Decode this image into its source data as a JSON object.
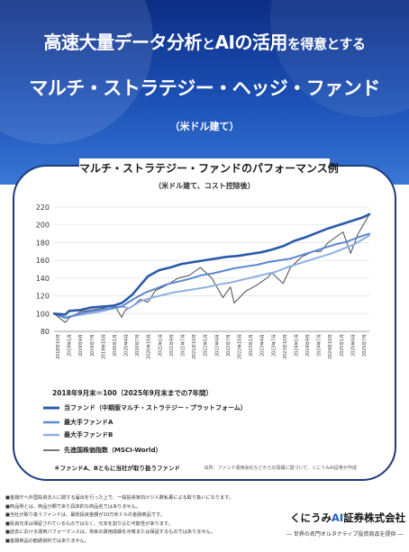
{
  "header": {
    "title_line1_part1": "高速大量データ分析",
    "title_line1_part2": "と",
    "title_line1_part3": "AIの活用",
    "title_line1_part4": "を得意とする",
    "title_line2": "マルチ・ストラテジー・ヘッジ・ファンド",
    "subtitle": "（米ドル建て）"
  },
  "card": {
    "title": "マルチ・ストラテジー・ファンドのパフォーマンス例",
    "subtitle": "（米ドル建て、コスト控除後）",
    "basis_note": "2018年9月末＝100（2025年9月末までの7年間）",
    "footnote": "＊ファンドA、Bともに当社が取り扱うファンド",
    "source": "出所：ファンド運用会社などからの情報に基づいて、くにうみAI証券が作成"
  },
  "colors": {
    "own_fund": "#2a5aa8",
    "fund_a": "#5b88cf",
    "fund_b": "#8db0e4",
    "msci": "#4a4a4a",
    "grid": "#e3e3e3",
    "axis_text": "#333333"
  },
  "chart_data": {
    "type": "line",
    "title": "",
    "xlabel": "",
    "ylabel": "",
    "ylim": [
      80,
      220
    ],
    "yticks": [
      80,
      100,
      120,
      140,
      160,
      180,
      200,
      220
    ],
    "grid": "horizontal",
    "x_tick_labels": [
      "2018年10月",
      "2019年1月",
      "2019年4月",
      "2019年7月",
      "2019年10月",
      "2020年1月",
      "2020年4月",
      "2020年7月",
      "2020年10月",
      "2021年1月",
      "2021年4月",
      "2021年7月",
      "2021年10月",
      "2022年1月",
      "2022年4月",
      "2022年7月",
      "2022年10月",
      "2023年1月",
      "2023年4月",
      "2023年7月",
      "2023年10月",
      "2024年1月",
      "2024年4月",
      "2024年7月",
      "2024年10月",
      "2025年1月",
      "2025年4月",
      "2025年7月"
    ],
    "x_range": [
      "2018-09",
      "2025-09"
    ],
    "series": [
      {
        "name": "当ファンド（中期版マルチ・ストラテジー・プラットフォーム）",
        "points": [
          [
            "2018-09",
            100
          ],
          [
            "2018-12",
            99
          ],
          [
            "2019-01",
            103
          ],
          [
            "2019-04",
            104
          ],
          [
            "2019-07",
            107
          ],
          [
            "2019-10",
            108
          ],
          [
            "2020-01",
            109
          ],
          [
            "2020-03",
            112
          ],
          [
            "2020-04",
            115
          ],
          [
            "2020-06",
            122
          ],
          [
            "2020-08",
            132
          ],
          [
            "2020-10",
            142
          ],
          [
            "2021-01",
            149
          ],
          [
            "2021-04",
            152
          ],
          [
            "2021-07",
            156
          ],
          [
            "2021-10",
            158
          ],
          [
            "2022-01",
            160
          ],
          [
            "2022-04",
            162
          ],
          [
            "2022-07",
            164
          ],
          [
            "2022-10",
            165
          ],
          [
            "2023-01",
            167
          ],
          [
            "2023-04",
            169
          ],
          [
            "2023-07",
            172
          ],
          [
            "2023-10",
            176
          ],
          [
            "2024-01",
            182
          ],
          [
            "2024-04",
            186
          ],
          [
            "2024-07",
            191
          ],
          [
            "2024-10",
            196
          ],
          [
            "2025-01",
            200
          ],
          [
            "2025-04",
            204
          ],
          [
            "2025-07",
            208
          ],
          [
            "2025-09",
            212
          ]
        ]
      },
      {
        "name": "最大手ファンドA",
        "points": [
          [
            "2018-09",
            100
          ],
          [
            "2018-12",
            95
          ],
          [
            "2019-03",
            99
          ],
          [
            "2019-06",
            102
          ],
          [
            "2019-09",
            104
          ],
          [
            "2019-12",
            106
          ],
          [
            "2020-03",
            108
          ],
          [
            "2020-06",
            116
          ],
          [
            "2020-09",
            123
          ],
          [
            "2020-12",
            128
          ],
          [
            "2021-03",
            133
          ],
          [
            "2021-06",
            136
          ],
          [
            "2021-09",
            139
          ],
          [
            "2021-12",
            143
          ],
          [
            "2022-03",
            145
          ],
          [
            "2022-06",
            148
          ],
          [
            "2022-09",
            151
          ],
          [
            "2022-12",
            153
          ],
          [
            "2023-03",
            155
          ],
          [
            "2023-06",
            158
          ],
          [
            "2023-09",
            160
          ],
          [
            "2023-12",
            162
          ],
          [
            "2024-03",
            166
          ],
          [
            "2024-06",
            170
          ],
          [
            "2024-09",
            174
          ],
          [
            "2024-12",
            178
          ],
          [
            "2025-03",
            181
          ],
          [
            "2025-06",
            186
          ],
          [
            "2025-09",
            190
          ]
        ]
      },
      {
        "name": "最大手ファンドB",
        "points": [
          [
            "2018-09",
            100
          ],
          [
            "2018-12",
            96
          ],
          [
            "2019-03",
            98
          ],
          [
            "2019-06",
            100
          ],
          [
            "2019-09",
            102
          ],
          [
            "2019-12",
            105
          ],
          [
            "2020-03",
            108
          ],
          [
            "2020-05",
            106
          ],
          [
            "2020-08",
            114
          ],
          [
            "2020-11",
            118
          ],
          [
            "2021-02",
            121
          ],
          [
            "2021-05",
            124
          ],
          [
            "2021-08",
            126
          ],
          [
            "2021-11",
            128
          ],
          [
            "2022-02",
            130
          ],
          [
            "2022-05",
            133
          ],
          [
            "2022-08",
            135
          ],
          [
            "2022-11",
            138
          ],
          [
            "2023-02",
            141
          ],
          [
            "2023-05",
            144
          ],
          [
            "2023-08",
            147
          ],
          [
            "2023-11",
            152
          ],
          [
            "2024-02",
            156
          ],
          [
            "2024-05",
            160
          ],
          [
            "2024-08",
            164
          ],
          [
            "2024-11",
            168
          ],
          [
            "2025-02",
            173
          ],
          [
            "2025-05",
            178
          ],
          [
            "2025-09",
            188
          ]
        ]
      },
      {
        "name": "先進国株価指数（MSCI-World）",
        "points": [
          [
            "2018-09",
            100
          ],
          [
            "2018-12",
            90
          ],
          [
            "2019-01",
            95
          ],
          [
            "2019-04",
            102
          ],
          [
            "2019-07",
            104
          ],
          [
            "2019-10",
            106
          ],
          [
            "2020-01",
            110
          ],
          [
            "2020-03",
            96
          ],
          [
            "2020-04",
            104
          ],
          [
            "2020-06",
            109
          ],
          [
            "2020-08",
            116
          ],
          [
            "2020-10",
            113
          ],
          [
            "2020-12",
            126
          ],
          [
            "2021-03",
            132
          ],
          [
            "2021-06",
            140
          ],
          [
            "2021-09",
            143
          ],
          [
            "2021-12",
            152
          ],
          [
            "2022-03",
            140
          ],
          [
            "2022-06",
            118
          ],
          [
            "2022-08",
            130
          ],
          [
            "2022-09",
            112
          ],
          [
            "2022-12",
            125
          ],
          [
            "2023-03",
            132
          ],
          [
            "2023-06",
            141
          ],
          [
            "2023-07",
            146
          ],
          [
            "2023-10",
            134
          ],
          [
            "2023-12",
            152
          ],
          [
            "2024-03",
            164
          ],
          [
            "2024-06",
            170
          ],
          [
            "2024-08",
            170
          ],
          [
            "2024-10",
            180
          ],
          [
            "2024-12",
            186
          ],
          [
            "2025-02",
            192
          ],
          [
            "2025-04",
            168
          ],
          [
            "2025-06",
            190
          ],
          [
            "2025-09",
            212
          ]
        ]
      }
    ]
  },
  "legend": {
    "items": [
      "当ファンド（中期版マルチ・ストラテジー・プラットフォーム）",
      "最大手ファンドA",
      "最大手ファンドB",
      "先進国株価指数（MSCI-World）"
    ]
  },
  "disclaimers": [
    "■金融庁へ外国投資法人に関する届出を行った上で、一般投資家向け少人数私募による取り扱いになります。",
    "■商品例とは、商品分類であり具体的な商品名ではありません。",
    "■当社が取り扱うファンドは、最低投資金額が10万米ドルの金融商品です。",
    "■投資元本は保証されているものではなく、元本を割り込む可能性があります。",
    "■過去における運用パフォーマンスは、将来の運用成績を示唆または保証するものではありません。",
    "■金融商品の勧誘資料ではありません。"
  ],
  "company": {
    "name_prefix": "くにうみ",
    "name_ai": "AI",
    "name_suffix": "証券株式会社",
    "tagline": "― 世界の名門オルタナティブ投資商品を提供 ―"
  }
}
